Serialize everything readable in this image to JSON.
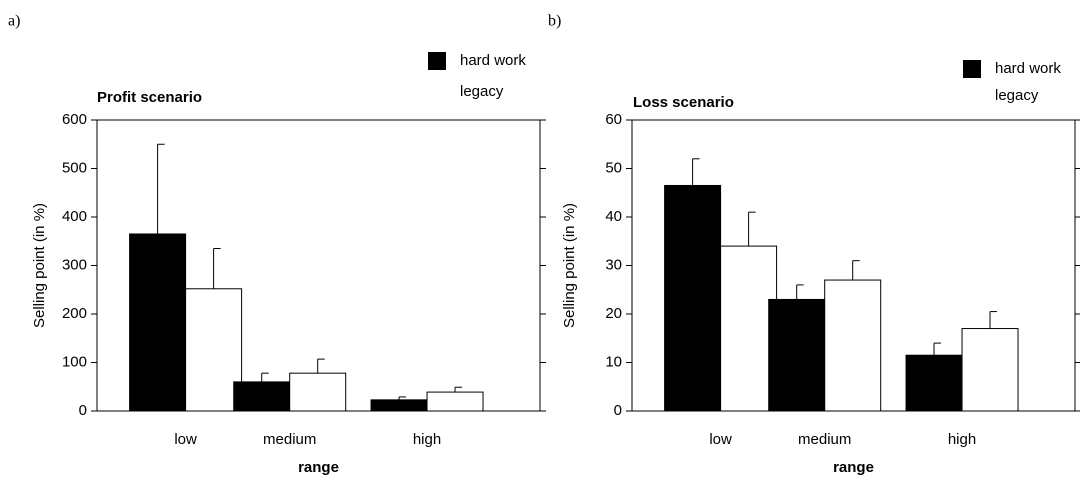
{
  "chart_data": [
    {
      "type": "bar",
      "panel_label": "a)",
      "title": "Profit scenario",
      "x_label": "range",
      "y_label": "Selling point (in %)",
      "categories": [
        "low",
        "medium",
        "high"
      ],
      "series": [
        {
          "name": "hard work",
          "color": "#000000",
          "values": [
            365,
            60,
            23
          ],
          "errors": [
            185,
            18,
            6
          ]
        },
        {
          "name": "legacy",
          "color": "#ffffff",
          "values": [
            252,
            78,
            39
          ],
          "errors": [
            83,
            29,
            10
          ]
        }
      ],
      "ylim": [
        0,
        600
      ],
      "yticks": [
        0,
        100,
        200,
        300,
        400,
        500,
        600
      ]
    },
    {
      "type": "bar",
      "panel_label": "b)",
      "title": "Loss scenario",
      "x_label": "range",
      "y_label": "Selling point (in %)",
      "categories": [
        "low",
        "medium",
        "high"
      ],
      "series": [
        {
          "name": "hard work",
          "color": "#000000",
          "values": [
            46.5,
            23,
            11.5
          ],
          "errors": [
            5.5,
            3,
            2.5
          ]
        },
        {
          "name": "legacy",
          "color": "#ffffff",
          "values": [
            34,
            27,
            17
          ],
          "errors": [
            7,
            4,
            3.5
          ]
        }
      ],
      "ylim": [
        0,
        60
      ],
      "yticks": [
        0,
        10,
        20,
        30,
        40,
        50,
        60
      ]
    }
  ]
}
